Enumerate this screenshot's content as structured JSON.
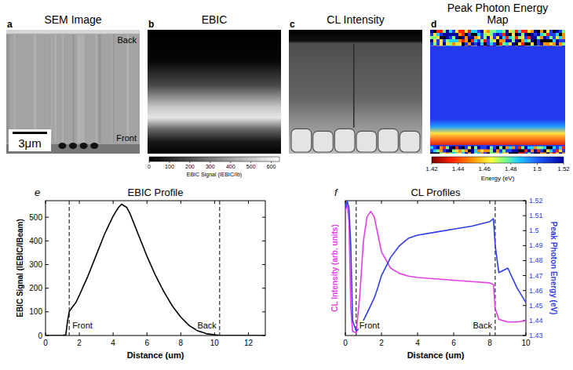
{
  "panels": [
    {
      "panel_label": "a",
      "title": "SEM Image",
      "labels": [
        "Back",
        "Front"
      ],
      "scale_bar": "3μm"
    },
    {
      "panel_label": "b",
      "title": "EBIC",
      "colorbar": {
        "label": "EBIC Signal (IEBIC/Ib)",
        "range": [
          0,
          640
        ],
        "ticks": [
          0,
          100,
          200,
          300,
          400,
          500,
          600
        ]
      }
    },
    {
      "panel_label": "c",
      "title": "CL Intensity"
    },
    {
      "panel_label": "d",
      "title": "Peak Photon Energy Map",
      "colorbar": {
        "label": "Energy (eV)",
        "range": [
          1.42,
          1.52
        ],
        "ticks": [
          1.42,
          1.44,
          1.46,
          1.48,
          1.5,
          1.52
        ]
      }
    }
  ],
  "chart_data": [
    {
      "type": "line",
      "panel_label": "e",
      "title": "EBIC Profile",
      "x_label": "Distance (um)",
      "y_label": "EBIC Signal (IEBIC/IBeam)",
      "xlim": [
        0,
        13
      ],
      "xticks": [
        0,
        2,
        4,
        6,
        8,
        10,
        12
      ],
      "ylim": [
        0,
        570
      ],
      "yticks": [
        0,
        100,
        200,
        300,
        400,
        500
      ],
      "x": [
        0,
        0.5,
        1,
        1.2,
        1.3,
        1.4,
        1.5,
        1.8,
        2,
        2.5,
        3,
        3.5,
        4,
        4.3,
        4.5,
        4.8,
        5,
        5.5,
        6,
        6.5,
        7,
        7.5,
        8,
        8.5,
        9,
        9.5,
        10,
        10.3,
        10.6,
        11,
        12,
        13
      ],
      "series": [
        {
          "color": "#000000",
          "values": [
            0,
            0,
            0,
            3,
            60,
            100,
            112,
            140,
            170,
            250,
            340,
            430,
            505,
            540,
            555,
            542,
            515,
            425,
            335,
            255,
            185,
            125,
            78,
            42,
            20,
            8,
            3,
            1,
            0,
            0,
            0,
            0
          ]
        }
      ],
      "annotations": [
        {
          "x": 1.4,
          "label": "Front"
        },
        {
          "x": 10.3,
          "label": "Back"
        }
      ]
    },
    {
      "type": "line",
      "panel_label": "f",
      "title": "CL Profiles",
      "x_label": "Distance (um)",
      "y_label": "CL Intensity (arb. units)",
      "y2_label": "Peak Photon Energy (eV)",
      "xlim": [
        0,
        10
      ],
      "xticks": [
        0,
        2,
        4,
        6,
        8,
        10
      ],
      "ylim": [
        0,
        1
      ],
      "y2lim": [
        1.43,
        1.52
      ],
      "y2ticks": [
        1.43,
        1.44,
        1.45,
        1.46,
        1.47,
        1.48,
        1.49,
        1.5,
        1.51,
        1.52
      ],
      "x": [
        0,
        0.1,
        0.2,
        0.3,
        0.4,
        0.6,
        0.8,
        1,
        1.2,
        1.4,
        1.6,
        1.8,
        2,
        2.5,
        3,
        3.5,
        4,
        5,
        6,
        7,
        8,
        8.2,
        8.3,
        8.5,
        9,
        9.5,
        10
      ],
      "series": [
        {
          "color": "#e43fe4",
          "values": [
            0.93,
            0.97,
            0.85,
            0.2,
            0.03,
            0.02,
            0.3,
            0.7,
            0.88,
            0.92,
            0.88,
            0.75,
            0.62,
            0.5,
            0.46,
            0.44,
            0.43,
            0.42,
            0.41,
            0.4,
            0.39,
            0.38,
            0.2,
            0.12,
            0.1,
            0.1,
            0.11
          ]
        },
        {
          "color": "#2f3ce8",
          "axis": "y2",
          "values": [
            1.515,
            1.52,
            1.515,
            1.49,
            1.44,
            1.433,
            1.435,
            1.44,
            1.445,
            1.45,
            1.455,
            1.462,
            1.47,
            1.482,
            1.49,
            1.495,
            1.497,
            1.499,
            1.501,
            1.503,
            1.506,
            1.508,
            1.49,
            1.472,
            1.475,
            1.462,
            1.452
          ]
        }
      ],
      "annotations": [
        {
          "x": 0.6,
          "label": "Front"
        },
        {
          "x": 8.3,
          "label": "Back"
        }
      ]
    }
  ]
}
